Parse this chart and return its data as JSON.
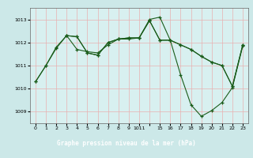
{
  "title": "Graphe pression niveau de la mer (hPa)",
  "bg_color": "#cce8e8",
  "plot_bg_color": "#d8f0f0",
  "grid_color": "#e8b0b0",
  "line_color": "#1a5c1a",
  "marker": "+",
  "ylim": [
    1008.5,
    1013.5
  ],
  "yticks": [
    1009,
    1010,
    1011,
    1012,
    1013
  ],
  "xtick_labels": [
    "0",
    "1",
    "2",
    "3",
    "4",
    "5",
    "6",
    "7",
    "8",
    "9",
    "1011",
    "",
    "15",
    "16",
    "17",
    "18",
    "19",
    "20",
    "21",
    "22",
    "23"
  ],
  "xtick_positions": [
    0,
    1,
    2,
    3,
    4,
    5,
    6,
    7,
    8,
    9,
    10,
    11,
    12,
    13,
    14,
    15,
    16,
    17,
    18,
    19,
    20
  ],
  "xlim": [
    -0.5,
    20.5
  ],
  "xlabel_bg": "#2d6b2d",
  "series": [
    {
      "x": [
        0,
        1,
        2,
        3,
        4,
        5,
        6,
        7,
        8,
        9,
        10,
        11,
        12,
        13,
        14,
        15,
        16,
        17,
        18,
        19,
        20
      ],
      "y": [
        1010.3,
        1011.0,
        1011.8,
        1012.3,
        1011.7,
        1011.6,
        1011.55,
        1011.9,
        1012.15,
        1012.15,
        1012.2,
        1013.0,
        1013.1,
        1012.1,
        1010.6,
        1009.3,
        1008.8,
        1009.05,
        1009.4,
        1010.05,
        1011.85
      ]
    },
    {
      "x": [
        0,
        1,
        2,
        3,
        4,
        5,
        6,
        7,
        8,
        9,
        10,
        11,
        12,
        13,
        14,
        15,
        16,
        17,
        18,
        19,
        20
      ],
      "y": [
        1010.3,
        1011.0,
        1011.75,
        1012.3,
        1012.25,
        1011.55,
        1011.45,
        1012.0,
        1012.15,
        1012.2,
        1012.2,
        1012.95,
        1012.1,
        1012.1,
        1011.9,
        1011.7,
        1011.4,
        1011.15,
        1011.0,
        1010.1,
        1011.9
      ]
    },
    {
      "x": [
        3,
        4,
        5,
        6,
        7,
        8,
        9,
        10,
        11,
        12,
        13,
        14,
        15,
        16,
        17,
        18,
        19,
        20
      ],
      "y": [
        1012.3,
        1012.25,
        1011.55,
        1011.45,
        1012.0,
        1012.15,
        1012.2,
        1012.2,
        1012.95,
        1012.1,
        1012.1,
        1011.9,
        1011.7,
        1011.4,
        1011.15,
        1011.0,
        1010.1,
        1011.9
      ]
    }
  ]
}
